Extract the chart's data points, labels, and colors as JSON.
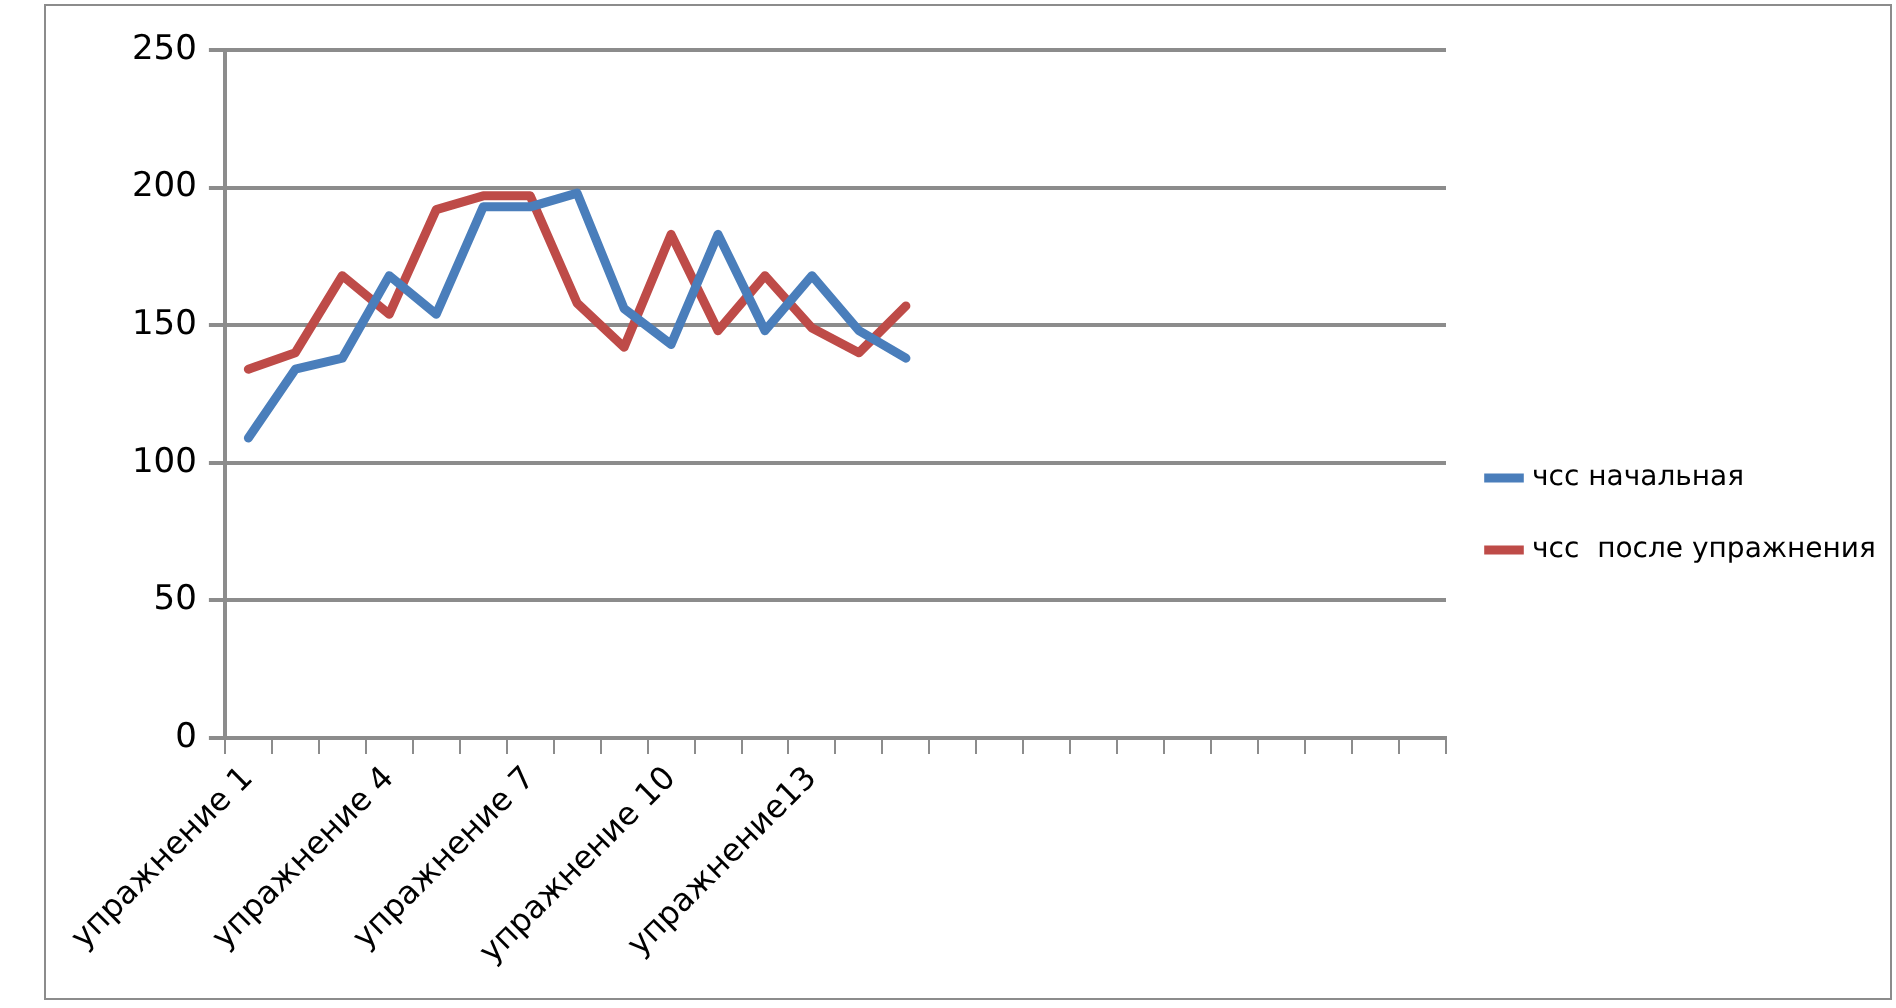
{
  "chart_data": {
    "type": "line",
    "categories": [
      "упражнение 1",
      null,
      null,
      "упражнение 4",
      null,
      null,
      "упражнение 7",
      null,
      null,
      "упражнение 10",
      null,
      null,
      "упражнение13",
      null,
      null,
      null,
      null,
      null,
      null,
      null,
      null,
      null,
      null,
      null,
      null,
      null
    ],
    "series": [
      {
        "name": "чсс начальная",
        "color": "#4a7ebb",
        "values": [
          109,
          134,
          138,
          168,
          154,
          193,
          193,
          198,
          156,
          143,
          183,
          148,
          168,
          148,
          138,
          null,
          null,
          null,
          null,
          null,
          null,
          null,
          null,
          null,
          null,
          null
        ]
      },
      {
        "name": "чсс  после упражнения",
        "color": "#be4b48",
        "values": [
          134,
          140,
          168,
          154,
          192,
          197,
          197,
          158,
          142,
          183,
          148,
          168,
          149,
          140,
          157,
          null,
          null,
          null,
          null,
          null,
          null,
          null,
          null,
          null,
          null,
          null
        ]
      }
    ],
    "ylim": [
      0,
      250
    ],
    "yticks": [
      0,
      50,
      100,
      150,
      200,
      250
    ],
    "grid": "y",
    "legend": "right",
    "marker": "none",
    "line_style": "solid"
  }
}
